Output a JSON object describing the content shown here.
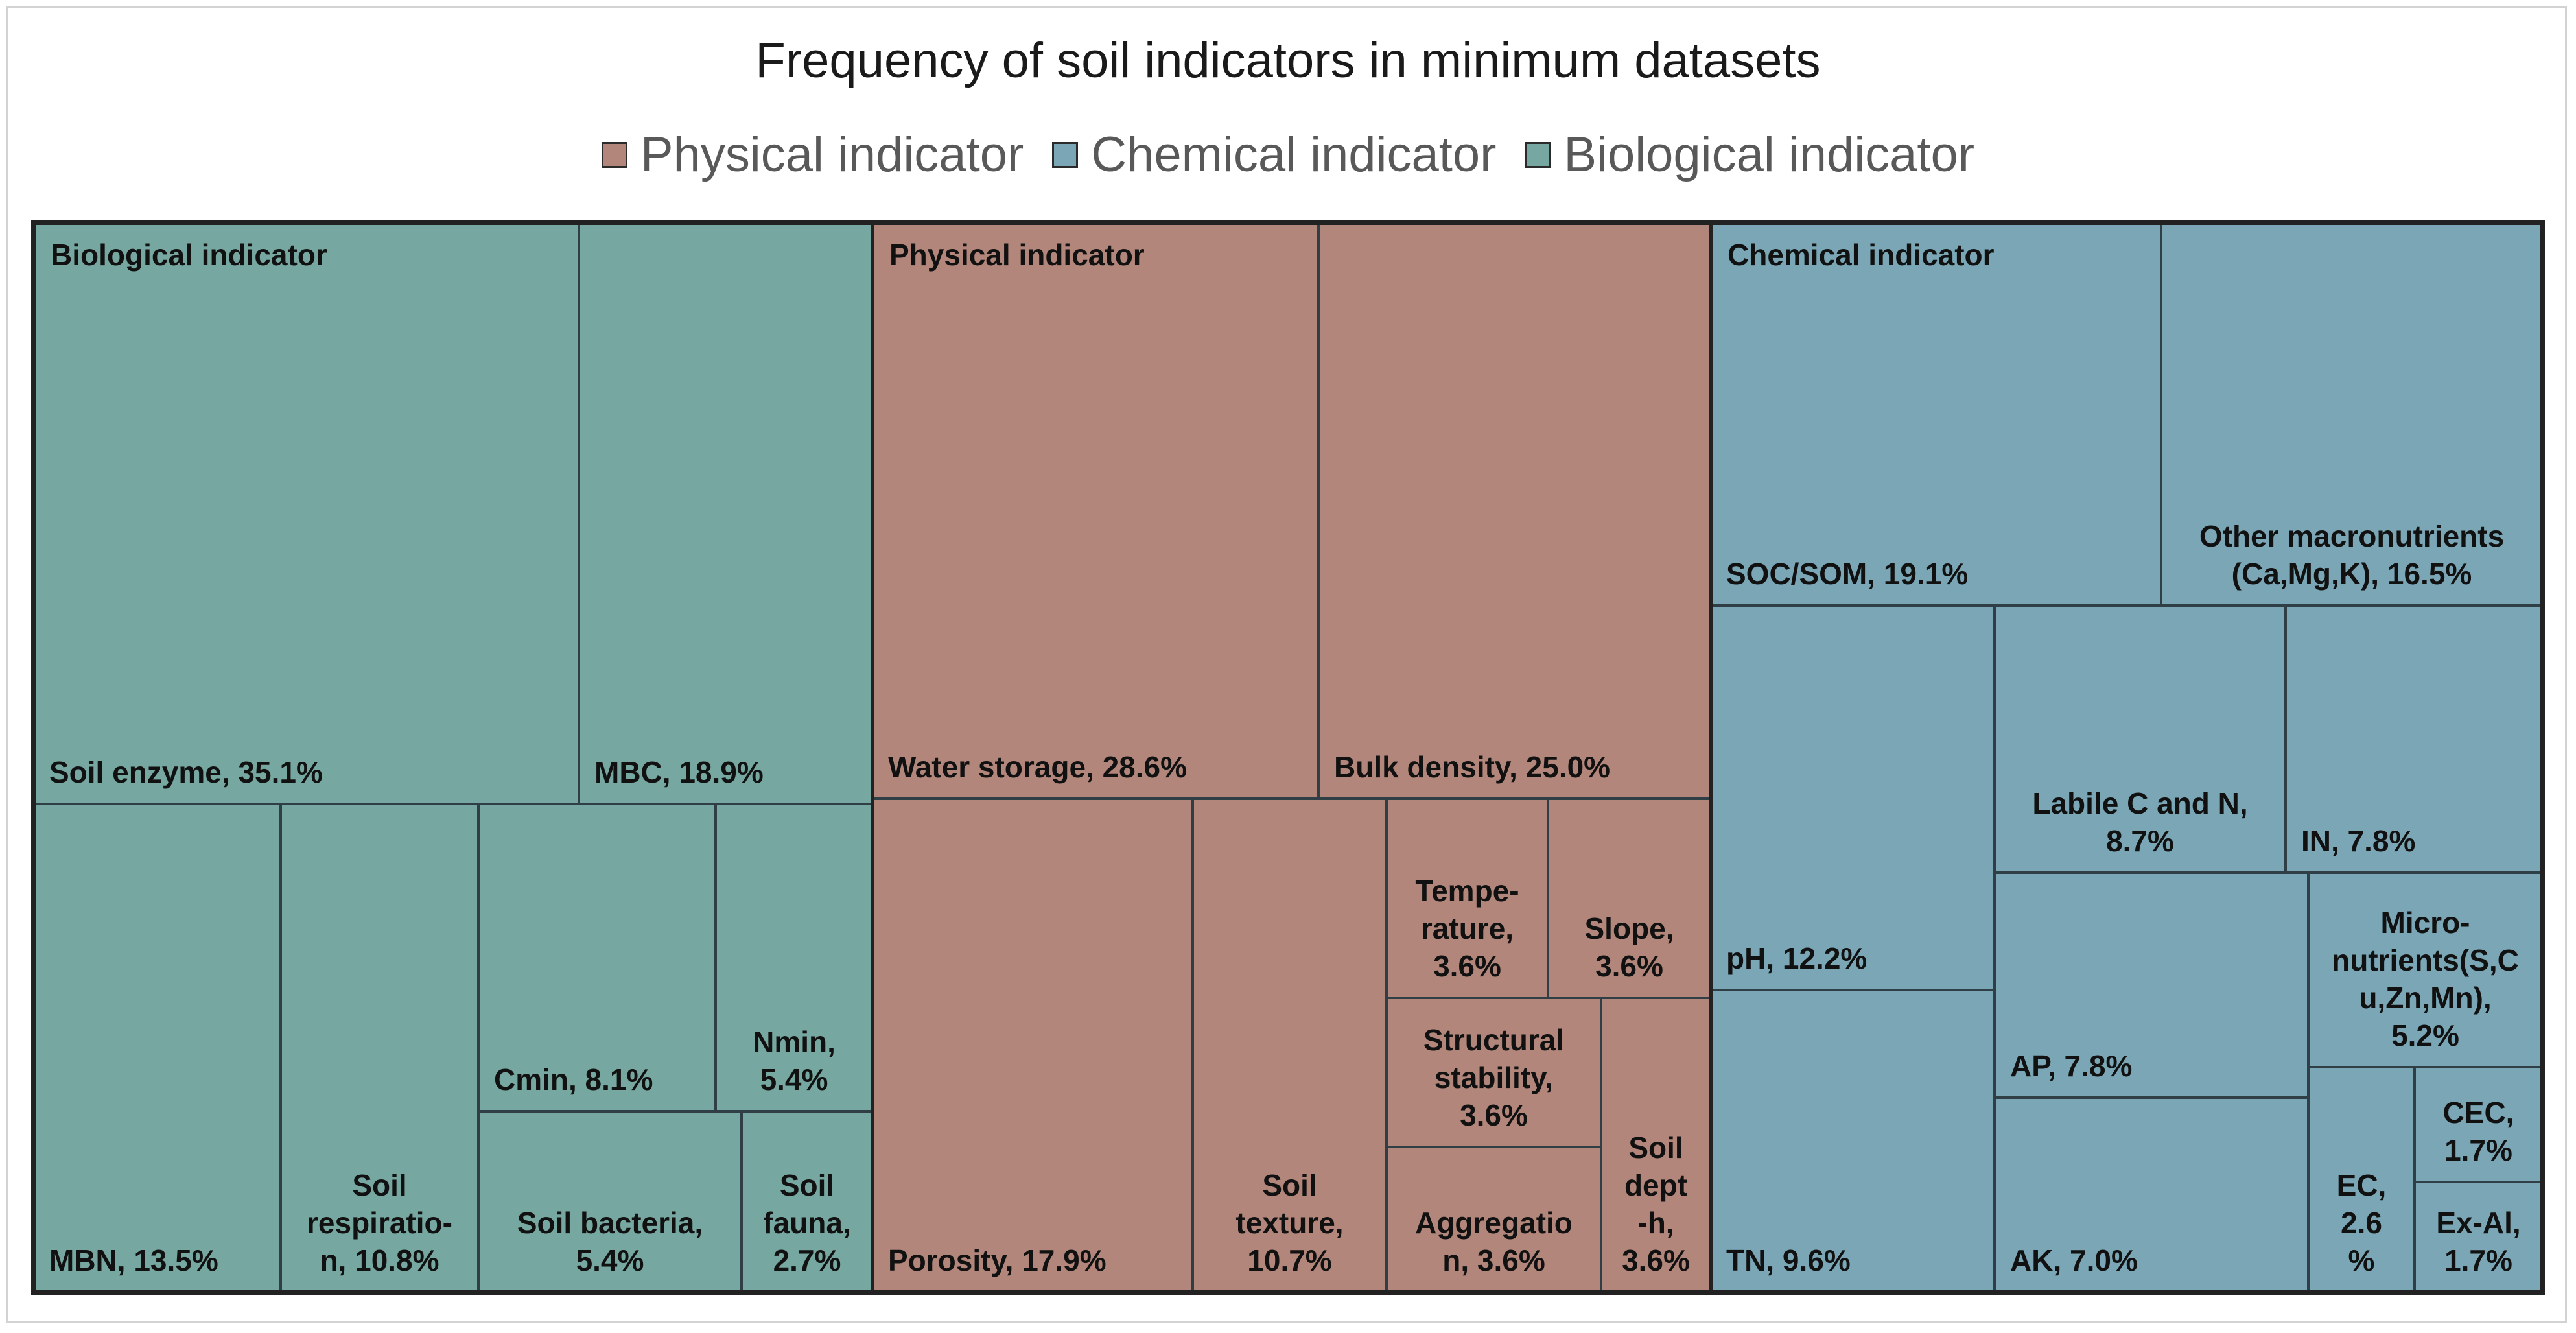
{
  "chart_data": {
    "type": "treemap",
    "title": "Frequency of soil indicators in minimum datasets",
    "legend": {
      "position": "top",
      "entries": [
        {
          "name": "Physical indicator",
          "color": "#b2867b"
        },
        {
          "name": "Chemical indicator",
          "color": "#7aa6b6"
        },
        {
          "name": "Biological indicator",
          "color": "#76a7a0"
        }
      ]
    },
    "groups": [
      {
        "name": "Biological indicator",
        "color": "#76a7a0",
        "items": [
          {
            "label": "Soil enzyme, 35.1%",
            "name": "Soil enzyme",
            "value": 35.1
          },
          {
            "label": "MBC, 18.9%",
            "name": "MBC",
            "value": 18.9
          },
          {
            "label": "MBN, 13.5%",
            "name": "MBN",
            "value": 13.5
          },
          {
            "label": "Soil\nrespiratio-\nn, 10.8%",
            "name": "Soil respiration",
            "value": 10.8
          },
          {
            "label": "Cmin, 8.1%",
            "name": "Cmin",
            "value": 8.1
          },
          {
            "label": "Nmin,\n5.4%",
            "name": "Nmin",
            "value": 5.4
          },
          {
            "label": "Soil bacteria,\n5.4%",
            "name": "Soil bacteria",
            "value": 5.4
          },
          {
            "label": "Soil\nfauna,\n2.7%",
            "name": "Soil fauna",
            "value": 2.7
          }
        ]
      },
      {
        "name": "Physical indicator",
        "color": "#b2867b",
        "items": [
          {
            "label": "Water storage, 28.6%",
            "name": "Water storage",
            "value": 28.6
          },
          {
            "label": "Bulk density, 25.0%",
            "name": "Bulk density",
            "value": 25.0
          },
          {
            "label": "Porosity, 17.9%",
            "name": "Porosity",
            "value": 17.9
          },
          {
            "label": "Soil\ntexture,\n10.7%",
            "name": "Soil texture",
            "value": 10.7
          },
          {
            "label": "Tempe-\nrature,\n3.6%",
            "name": "Temperature",
            "value": 3.6
          },
          {
            "label": "Slope,\n3.6%",
            "name": "Slope",
            "value": 3.6
          },
          {
            "label": "Structural\nstability,\n3.6%",
            "name": "Structural stability",
            "value": 3.6
          },
          {
            "label": "Aggregatio\nn, 3.6%",
            "name": "Aggregation",
            "value": 3.6
          },
          {
            "label": "Soil\ndept\n-h,\n3.6%",
            "name": "Soil depth",
            "value": 3.6
          }
        ]
      },
      {
        "name": "Chemical indicator",
        "color": "#7aa6b6",
        "items": [
          {
            "label": "SOC/SOM, 19.1%",
            "name": "SOC/SOM",
            "value": 19.1
          },
          {
            "label": "Other macronutrients\n(Ca,Mg,K), 16.5%",
            "name": "Other macronutrients (Ca,Mg,K)",
            "value": 16.5
          },
          {
            "label": "pH, 12.2%",
            "name": "pH",
            "value": 12.2
          },
          {
            "label": "TN, 9.6%",
            "name": "TN",
            "value": 9.6
          },
          {
            "label": "Labile C and N,\n8.7%",
            "name": "Labile C and N",
            "value": 8.7
          },
          {
            "label": "IN, 7.8%",
            "name": "IN",
            "value": 7.8
          },
          {
            "label": "AP, 7.8%",
            "name": "AP",
            "value": 7.8
          },
          {
            "label": "Micro-\nnutrients(S,C\nu,Zn,Mn),\n5.2%",
            "name": "Micronutrients (S,Cu,Zn,Mn)",
            "value": 5.2
          },
          {
            "label": "AK, 7.0%",
            "name": "AK",
            "value": 7.0
          },
          {
            "label": "EC,\n2.6\n%",
            "name": "EC",
            "value": 2.6
          },
          {
            "label": "CEC,\n1.7%",
            "name": "CEC",
            "value": 1.7
          },
          {
            "label": "Ex-Al,\n1.7%",
            "name": "Ex-Al",
            "value": 1.7
          }
        ]
      }
    ]
  }
}
